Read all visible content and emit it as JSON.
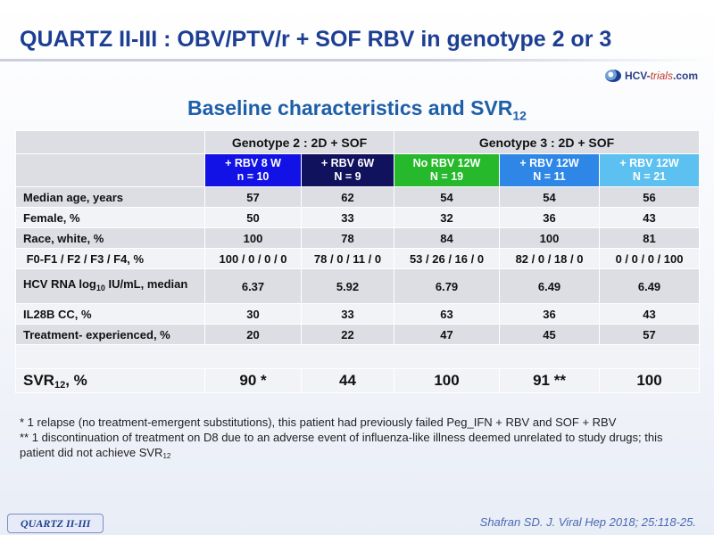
{
  "slide": {
    "title": "QUARTZ II-III : OBV/PTV/r + SOF  RBV in genotype 2 or 3",
    "logo_text": "HCV-",
    "logo_text_accent": "trials",
    "logo_text_tail": ".com",
    "subtitle_main": "Baseline characteristics and SVR",
    "subtitle_sub": "12"
  },
  "table": {
    "groups": [
      "Genotype 2 : 2D + SOF",
      "Genotype 3 : 2D + SOF"
    ],
    "arms": [
      {
        "line1": "+ RBV 8 W",
        "line2": "n = 10",
        "color": "#1212e6"
      },
      {
        "line1": "+ RBV 6W",
        "line2": "N = 9",
        "color": "#10125e"
      },
      {
        "line1": "No RBV 12W",
        "line2": "N = 19",
        "color": "#25b92b"
      },
      {
        "line1": "+ RBV 12W",
        "line2": "N = 11",
        "color": "#2e86e6"
      },
      {
        "line1": "+ RBV 12W",
        "line2": "N = 21",
        "color": "#5cc0f0"
      }
    ],
    "rows": [
      {
        "label": "Median age, years",
        "values": [
          "57",
          "62",
          "54",
          "54",
          "56"
        ]
      },
      {
        "label": "Female, %",
        "values": [
          "50",
          "33",
          "32",
          "36",
          "43"
        ]
      },
      {
        "label": "Race, white, %",
        "values": [
          "100",
          "78",
          "84",
          "100",
          "81"
        ]
      },
      {
        "label": " F0-F1 / F2 / F3 / F4, %",
        "values": [
          "100 / 0 / 0 / 0",
          "78 / 0 / 11 / 0",
          "53 / 26 / 16 / 0",
          "82 / 0 / 18 / 0",
          "0 / 0 / 0 / 100"
        ]
      },
      {
        "label_pre": "HCV RNA log",
        "label_sub": "10",
        "label_post": " IU/mL, median",
        "values": [
          "6.37",
          "5.92",
          "6.79",
          "6.49",
          "6.49"
        ]
      },
      {
        "label": "IL28B CC, %",
        "values": [
          "30",
          "33",
          "63",
          "36",
          "43"
        ]
      },
      {
        "label": "Treatment- experienced, %",
        "values": [
          "20",
          "22",
          "47",
          "45",
          "57"
        ]
      }
    ],
    "svr": {
      "label_pre": "SVR",
      "label_sub": "12",
      "label_post": ", %",
      "values": [
        "90 *",
        "44",
        "100",
        "91 **",
        "100"
      ]
    }
  },
  "footnotes": {
    "note1": "* 1 relapse (no treatment-emergent substitutions), this patient had previously failed Peg_IFN + RBV and SOF + RBV",
    "note2": "** 1 discontinuation of treatment on D8 due to an adverse event of influenza-like illness deemed unrelated to study drugs; this patient did not achieve SVR",
    "note2_sub": "12"
  },
  "badge": "QUARTZ II-III",
  "citation": "Shafran SD. J. Viral Hep 2018; 25:118-25."
}
